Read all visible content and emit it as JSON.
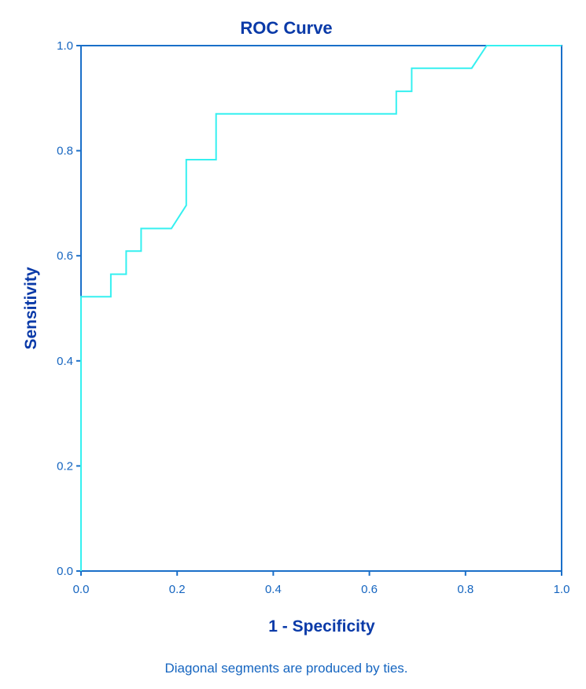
{
  "colors": {
    "frame": "#1a6fc9",
    "curve": "#35f0f0",
    "title": "#0a3aa8",
    "axis_label": "#0a3aa8",
    "tick": "#1565c0",
    "footnote": "#1565c0",
    "background": "#ffffff"
  },
  "chart_data": {
    "type": "line",
    "title": "ROC Curve",
    "xlabel": "1 - Specificity",
    "ylabel": "Sensitivity",
    "xlim": [
      0.0,
      1.0
    ],
    "ylim": [
      0.0,
      1.0
    ],
    "x_ticks": [
      "0.0",
      "0.2",
      "0.4",
      "0.6",
      "0.8",
      "1.0"
    ],
    "y_ticks": [
      "0.0",
      "0.2",
      "0.4",
      "0.6",
      "0.8",
      "1.0"
    ],
    "grid": false,
    "legend": "none",
    "footnote": "Diagonal segments are produced by ties.",
    "series": [
      {
        "x": [
          0.0,
          0.0,
          0.062,
          0.062,
          0.094,
          0.094,
          0.125,
          0.125,
          0.188,
          0.219,
          0.219,
          0.281,
          0.281,
          0.656,
          0.656,
          0.688,
          0.688,
          0.813,
          0.844,
          1.0
        ],
        "y": [
          0.0,
          0.522,
          0.522,
          0.565,
          0.565,
          0.609,
          0.609,
          0.652,
          0.652,
          0.696,
          0.783,
          0.783,
          0.87,
          0.87,
          0.913,
          0.913,
          0.957,
          0.957,
          1.0,
          1.0
        ]
      }
    ]
  }
}
